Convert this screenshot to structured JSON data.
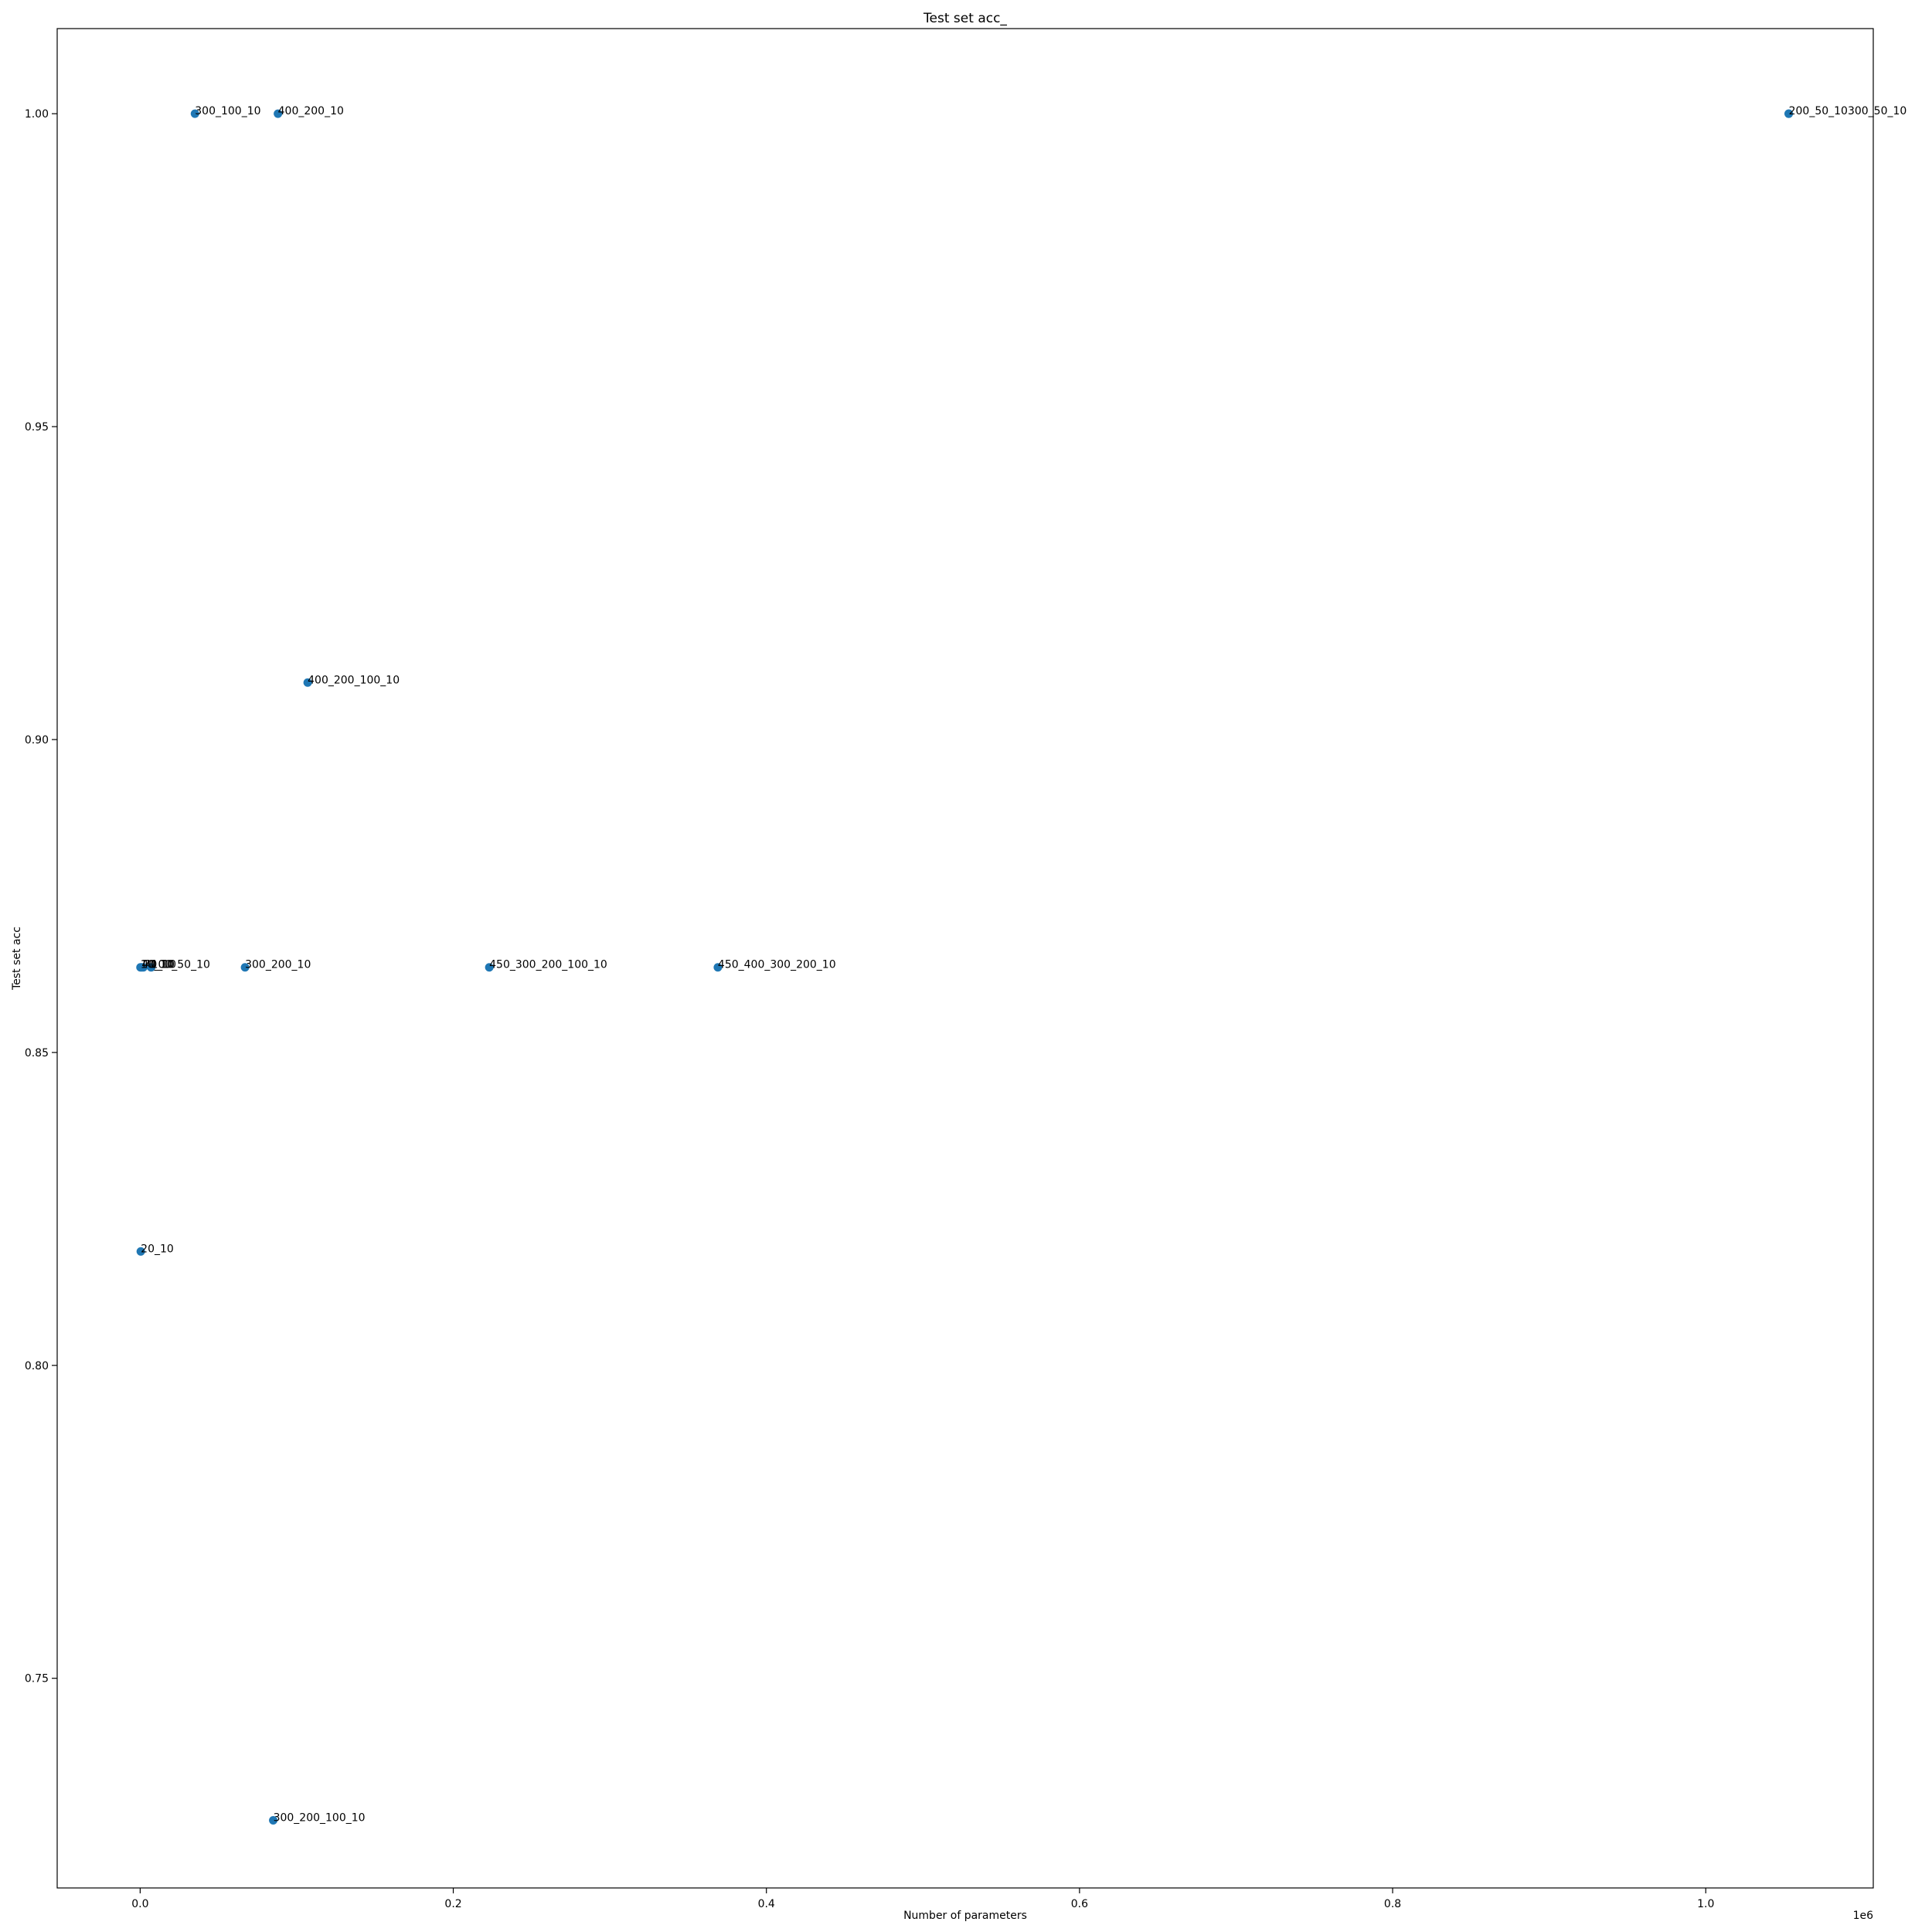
{
  "chart_data": {
    "type": "scatter",
    "title": "Test set acc_",
    "xlabel": "Number of parameters",
    "ylabel": "Test set acc",
    "x_offset_label": "1e6",
    "xlim": [
      -53000,
      1107000
    ],
    "ylim": [
      0.7165,
      1.0136
    ],
    "grid": false,
    "x_ticks": [
      0.0,
      0.2,
      0.4,
      0.6,
      0.8,
      1.0
    ],
    "x_tick_labels": [
      "0.0",
      "0.2",
      "0.4",
      "0.6",
      "0.8",
      "1.0"
    ],
    "y_ticks": [
      0.75,
      0.8,
      0.85,
      0.9,
      0.95,
      1.0
    ],
    "y_tick_labels": [
      "0.75",
      "0.80",
      "0.85",
      "0.90",
      "0.95",
      "1.00"
    ],
    "marker_color": "#1f77b4",
    "points": [
      {
        "label": "300_100_10",
        "x": 35000,
        "y": 1.0
      },
      {
        "label": "400_200_10",
        "x": 88000,
        "y": 1.0
      },
      {
        "label": "200_50_10",
        "x": 1053000,
        "y": 1.0
      },
      {
        "label": "300_50_10",
        "x": 1053000,
        "y": 1.0
      },
      {
        "label": "400_200_100_10",
        "x": 107000,
        "y": 0.9091
      },
      {
        "label": "10_10",
        "x": 200,
        "y": 0.8636
      },
      {
        "label": "40_10",
        "x": 1000,
        "y": 0.8636
      },
      {
        "label": "70_10",
        "x": 2000,
        "y": 0.8636
      },
      {
        "label": "100_50_10",
        "x": 7000,
        "y": 0.8636
      },
      {
        "label": "300_200_10",
        "x": 67000,
        "y": 0.8636
      },
      {
        "label": "450_300_200_100_10",
        "x": 223000,
        "y": 0.8636
      },
      {
        "label": "450_400_300_200_10",
        "x": 369000,
        "y": 0.8636
      },
      {
        "label": "20_10",
        "x": 400,
        "y": 0.8182
      },
      {
        "label": "300_200_100_10",
        "x": 85000,
        "y": 0.7273
      }
    ]
  }
}
